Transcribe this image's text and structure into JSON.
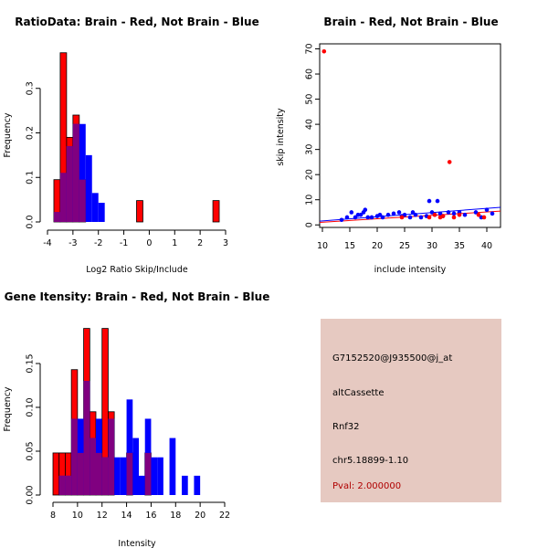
{
  "chart_data": [
    {
      "type": "histogram",
      "title": "RatioData: Brain - Red, Not Brain - Blue",
      "xlabel": "Log2 Ratio Skip/Include",
      "ylabel": "Frequency",
      "xlim": [
        -4,
        3
      ],
      "ylim": [
        0,
        0.4
      ],
      "xticks": [
        "-4",
        "-3",
        "-2",
        "-1",
        "0",
        "1",
        "2",
        "3"
      ],
      "yticks": [
        "0.0",
        "0.1",
        "0.2",
        "0.3"
      ],
      "bin_width": 0.25,
      "series": [
        {
          "name": "Brain",
          "color": "#ff0000",
          "bins": [
            [
              -3.75,
              0.095
            ],
            [
              -3.5,
              0.38
            ],
            [
              -3.25,
              0.19
            ],
            [
              -3.0,
              0.24
            ],
            [
              -2.75,
              0.095
            ],
            [
              -0.5,
              0.048
            ],
            [
              2.5,
              0.048
            ]
          ]
        },
        {
          "name": "Not Brain",
          "color": "#0000ff",
          "bins": [
            [
              -3.75,
              0.022
            ],
            [
              -3.5,
              0.11
            ],
            [
              -3.25,
              0.17
            ],
            [
              -3.0,
              0.22
            ],
            [
              -2.75,
              0.22
            ],
            [
              -2.5,
              0.15
            ],
            [
              -2.25,
              0.065
            ],
            [
              -2.0,
              0.043
            ]
          ]
        }
      ]
    },
    {
      "type": "scatter",
      "title": "Brain - Red, Not Brain - Blue",
      "xlabel": "include intensity",
      "ylabel": "skip intensity",
      "xlim": [
        9.5,
        42.5
      ],
      "ylim": [
        -1,
        72
      ],
      "xticks": [
        "10",
        "15",
        "20",
        "25",
        "30",
        "35",
        "40"
      ],
      "yticks": [
        "0",
        "10",
        "20",
        "30",
        "40",
        "50",
        "60",
        "70"
      ],
      "series": [
        {
          "name": "Brain",
          "color": "#ff0000",
          "points": [
            [
              10.3,
              69
            ],
            [
              33.2,
              25
            ],
            [
              24.5,
              3
            ],
            [
              29.5,
              3
            ],
            [
              30.5,
              4
            ],
            [
              31.5,
              3
            ],
            [
              32,
              3.5
            ],
            [
              35,
              4
            ],
            [
              38.5,
              4
            ],
            [
              39.5,
              3
            ],
            [
              34,
              3
            ]
          ],
          "fit": [
            [
              9.5,
              1.0
            ],
            [
              42.5,
              5.5
            ]
          ]
        },
        {
          "name": "Not Brain",
          "color": "#0000ff",
          "points": [
            [
              13.5,
              2
            ],
            [
              14.5,
              3
            ],
            [
              15.3,
              5
            ],
            [
              16,
              3
            ],
            [
              16.5,
              4
            ],
            [
              17,
              4
            ],
            [
              17.5,
              5
            ],
            [
              17.8,
              6
            ],
            [
              18.3,
              3
            ],
            [
              19,
              3
            ],
            [
              20,
              3.5
            ],
            [
              20.5,
              4
            ],
            [
              21,
              3
            ],
            [
              22,
              4
            ],
            [
              23,
              4.5
            ],
            [
              24,
              5
            ],
            [
              24.5,
              3.5
            ],
            [
              25,
              4
            ],
            [
              26,
              3
            ],
            [
              26.5,
              5
            ],
            [
              27,
              4
            ],
            [
              28,
              3
            ],
            [
              29,
              3.5
            ],
            [
              29.5,
              9.5
            ],
            [
              30,
              5
            ],
            [
              30.5,
              4
            ],
            [
              31,
              9.5
            ],
            [
              31.5,
              4.5
            ],
            [
              32,
              3.5
            ],
            [
              33,
              5
            ],
            [
              34,
              4.5
            ],
            [
              35,
              5
            ],
            [
              36,
              4
            ],
            [
              38,
              5
            ],
            [
              39,
              3
            ],
            [
              40,
              6
            ],
            [
              41,
              4.5
            ]
          ],
          "fit": [
            [
              9.5,
              1.5
            ],
            [
              42.5,
              7.0
            ]
          ]
        }
      ]
    },
    {
      "type": "histogram",
      "title": "Gene Itensity: Brain - Red, Not Brain - Blue",
      "xlabel": "Intensity",
      "ylabel": "Frequency",
      "xlim": [
        8,
        22
      ],
      "ylim": [
        0,
        0.2
      ],
      "xticks": [
        "8",
        "10",
        "12",
        "14",
        "16",
        "18",
        "20",
        "22"
      ],
      "yticks": [
        "0.00",
        "0.05",
        "0.10",
        "0.15"
      ],
      "bin_width": 0.5,
      "series": [
        {
          "name": "Brain",
          "color": "#ff0000",
          "bins": [
            [
              8.0,
              0.048
            ],
            [
              8.5,
              0.048
            ],
            [
              9.0,
              0.048
            ],
            [
              9.5,
              0.143
            ],
            [
              10.0,
              0.048
            ],
            [
              10.5,
              0.19
            ],
            [
              11.0,
              0.095
            ],
            [
              11.5,
              0.048
            ],
            [
              12.0,
              0.19
            ],
            [
              12.5,
              0.095
            ],
            [
              14.0,
              0.048
            ],
            [
              15.5,
              0.048
            ]
          ]
        },
        {
          "name": "Not Brain",
          "color": "#0000ff",
          "bins": [
            [
              8.5,
              0.022
            ],
            [
              9.0,
              0.022
            ],
            [
              9.5,
              0.087
            ],
            [
              10.0,
              0.087
            ],
            [
              10.5,
              0.13
            ],
            [
              11.0,
              0.065
            ],
            [
              11.5,
              0.087
            ],
            [
              12.0,
              0.043
            ],
            [
              12.5,
              0.087
            ],
            [
              13.0,
              0.043
            ],
            [
              13.5,
              0.043
            ],
            [
              14.0,
              0.109
            ],
            [
              14.5,
              0.065
            ],
            [
              15.0,
              0.022
            ],
            [
              15.5,
              0.087
            ],
            [
              16.0,
              0.043
            ],
            [
              16.5,
              0.043
            ],
            [
              17.5,
              0.065
            ],
            [
              18.5,
              0.022
            ],
            [
              19.5,
              0.022
            ]
          ]
        }
      ]
    }
  ],
  "info_box": {
    "probe_id": "G7152520@J935500@j_at",
    "event_type": "altCassette",
    "gene": "Rnf32",
    "location": "chr5.18899-1.10",
    "pval": "Pval: 2.000000",
    "background": "#e6c9c1",
    "pval_color": "#b00000"
  }
}
